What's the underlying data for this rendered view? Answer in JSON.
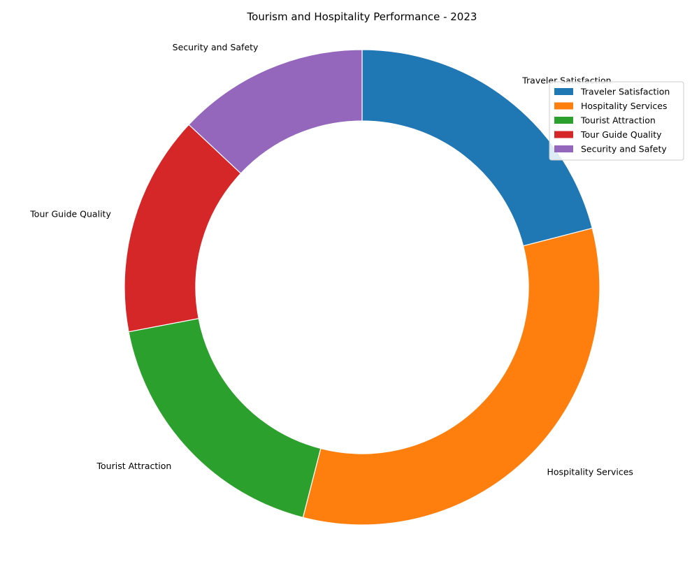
{
  "chart_data": {
    "type": "pie",
    "variant": "donut",
    "title": "Tourism and Hospitality Performance - 2023",
    "categories": [
      "Traveler Satisfaction",
      "Hospitality Services",
      "Tourist Attraction",
      "Tour Guide Quality",
      "Security and Safety"
    ],
    "values": [
      21,
      33,
      18,
      15,
      13
    ],
    "colors": [
      "#1f77b4",
      "#ff7f0e",
      "#2ca02c",
      "#d62728",
      "#9467bd"
    ],
    "start_angle_deg": 90,
    "direction": "clockwise",
    "legend": {
      "position": "top-right",
      "entries": [
        "Traveler Satisfaction",
        "Hospitality Services",
        "Tourist Attraction",
        "Tour Guide Quality",
        "Security and Safety"
      ]
    }
  }
}
